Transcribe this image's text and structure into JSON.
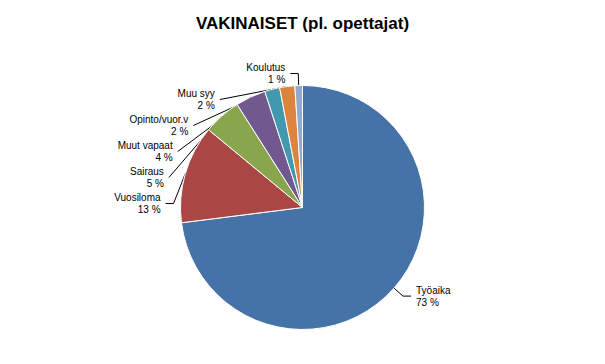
{
  "chart_data": {
    "type": "pie",
    "title": "VAKINAISET (pl. opettajat)",
    "categories": [
      "Työaika",
      "Vuosiloma",
      "Sairaus",
      "Muut vapaat",
      "Opinto/vuor.v",
      "Muu syy",
      "Koulutus"
    ],
    "values": [
      73,
      13,
      5,
      4,
      2,
      2,
      1
    ],
    "value_labels": [
      "73 %",
      "13 %",
      "5 %",
      "4 %",
      "2 %",
      "2 %",
      "1 %"
    ],
    "colors": [
      "#4572A7",
      "#AA4643",
      "#89A54E",
      "#71588F",
      "#4198AF",
      "#DB843D",
      "#93A9CF"
    ],
    "data_labels": true
  }
}
